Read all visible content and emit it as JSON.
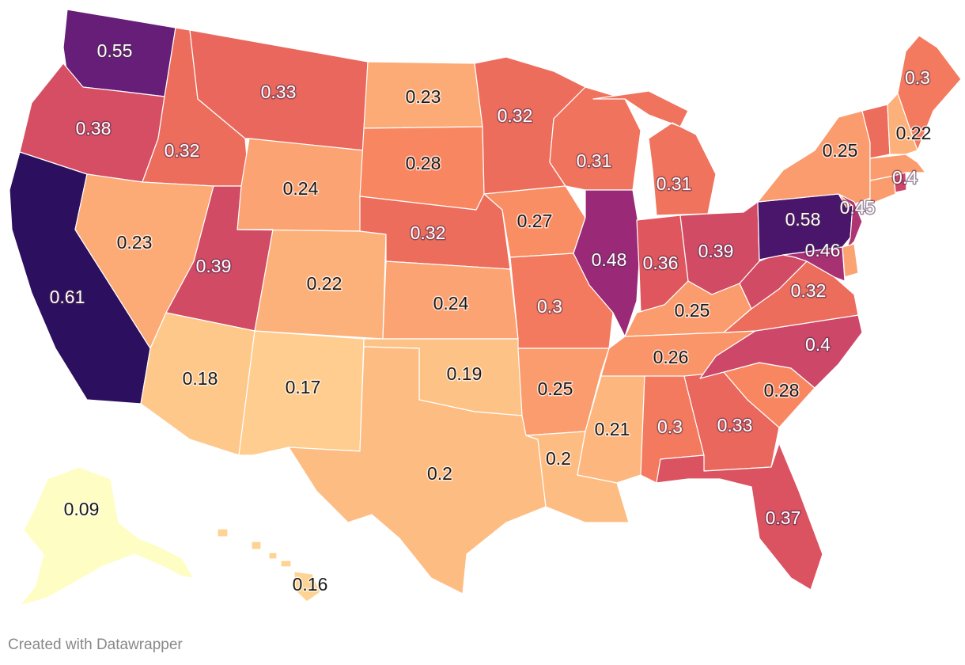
{
  "credit": "Created with Datawrapper",
  "colors": {
    "scale": [
      "#fefdc3",
      "#fed695",
      "#fdb17a",
      "#f8835f",
      "#e45a5c",
      "#c6416b",
      "#9a2a78",
      "#6b1f7b",
      "#2c0f5e"
    ],
    "border": "#ffffff"
  },
  "map_data": {
    "type": "choropleth",
    "region": "United States",
    "values": [
      {
        "state": "WA",
        "value": 0.55,
        "label": "0.55"
      },
      {
        "state": "OR",
        "value": 0.38,
        "label": "0.38"
      },
      {
        "state": "CA",
        "value": 0.61,
        "label": "0.61"
      },
      {
        "state": "ID",
        "value": 0.32,
        "label": "0.32"
      },
      {
        "state": "NV",
        "value": 0.23,
        "label": "0.23"
      },
      {
        "state": "MT",
        "value": 0.33,
        "label": "0.33"
      },
      {
        "state": "WY",
        "value": 0.24,
        "label": "0.24"
      },
      {
        "state": "UT",
        "value": 0.39,
        "label": "0.39"
      },
      {
        "state": "CO",
        "value": 0.22,
        "label": "0.22"
      },
      {
        "state": "AZ",
        "value": 0.18,
        "label": "0.18"
      },
      {
        "state": "NM",
        "value": 0.17,
        "label": "0.17"
      },
      {
        "state": "ND",
        "value": 0.23,
        "label": "0.23"
      },
      {
        "state": "SD",
        "value": 0.28,
        "label": "0.28"
      },
      {
        "state": "NE",
        "value": 0.32,
        "label": "0.32"
      },
      {
        "state": "KS",
        "value": 0.24,
        "label": "0.24"
      },
      {
        "state": "OK",
        "value": 0.19,
        "label": "0.19"
      },
      {
        "state": "TX",
        "value": 0.2,
        "label": "0.2"
      },
      {
        "state": "MN",
        "value": 0.32,
        "label": "0.32"
      },
      {
        "state": "IA",
        "value": 0.27,
        "label": "0.27"
      },
      {
        "state": "MO",
        "value": 0.3,
        "label": "0.3"
      },
      {
        "state": "AR",
        "value": 0.25,
        "label": "0.25"
      },
      {
        "state": "LA",
        "value": 0.2,
        "label": "0.2"
      },
      {
        "state": "WI",
        "value": 0.31,
        "label": "0.31"
      },
      {
        "state": "IL",
        "value": 0.48,
        "label": "0.48"
      },
      {
        "state": "MI",
        "value": 0.31,
        "label": "0.31"
      },
      {
        "state": "IN",
        "value": 0.36,
        "label": "0.36"
      },
      {
        "state": "OH",
        "value": 0.39,
        "label": "0.39"
      },
      {
        "state": "KY",
        "value": 0.25,
        "label": "0.25"
      },
      {
        "state": "TN",
        "value": 0.26,
        "label": "0.26"
      },
      {
        "state": "MS",
        "value": 0.21,
        "label": "0.21"
      },
      {
        "state": "AL",
        "value": 0.3,
        "label": "0.3"
      },
      {
        "state": "GA",
        "value": 0.33,
        "label": "0.33"
      },
      {
        "state": "FL",
        "value": 0.37,
        "label": "0.37"
      },
      {
        "state": "SC",
        "value": 0.28,
        "label": "0.28"
      },
      {
        "state": "NC",
        "value": 0.4,
        "label": "0.4"
      },
      {
        "state": "VA",
        "value": 0.32,
        "label": "0.32"
      },
      {
        "state": "WV",
        "value": 0.39,
        "label": null
      },
      {
        "state": "PA",
        "value": 0.58,
        "label": "0.58"
      },
      {
        "state": "NY",
        "value": 0.25,
        "label": "0.25"
      },
      {
        "state": "NJ",
        "value": 0.45,
        "label": "0.45"
      },
      {
        "state": "MD",
        "value": 0.46,
        "label": "0.46"
      },
      {
        "state": "DE",
        "value": 0.24,
        "label": null
      },
      {
        "state": "CT",
        "value": 0.25,
        "label": null
      },
      {
        "state": "RI",
        "value": 0.4,
        "label": "0.4"
      },
      {
        "state": "MA",
        "value": 0.25,
        "label": null
      },
      {
        "state": "VT",
        "value": 0.32,
        "label": null
      },
      {
        "state": "NH",
        "value": 0.22,
        "label": "0.22"
      },
      {
        "state": "ME",
        "value": 0.3,
        "label": "0.3"
      },
      {
        "state": "AK",
        "value": 0.09,
        "label": "0.09"
      },
      {
        "state": "HI",
        "value": 0.16,
        "label": "0.16"
      }
    ]
  }
}
